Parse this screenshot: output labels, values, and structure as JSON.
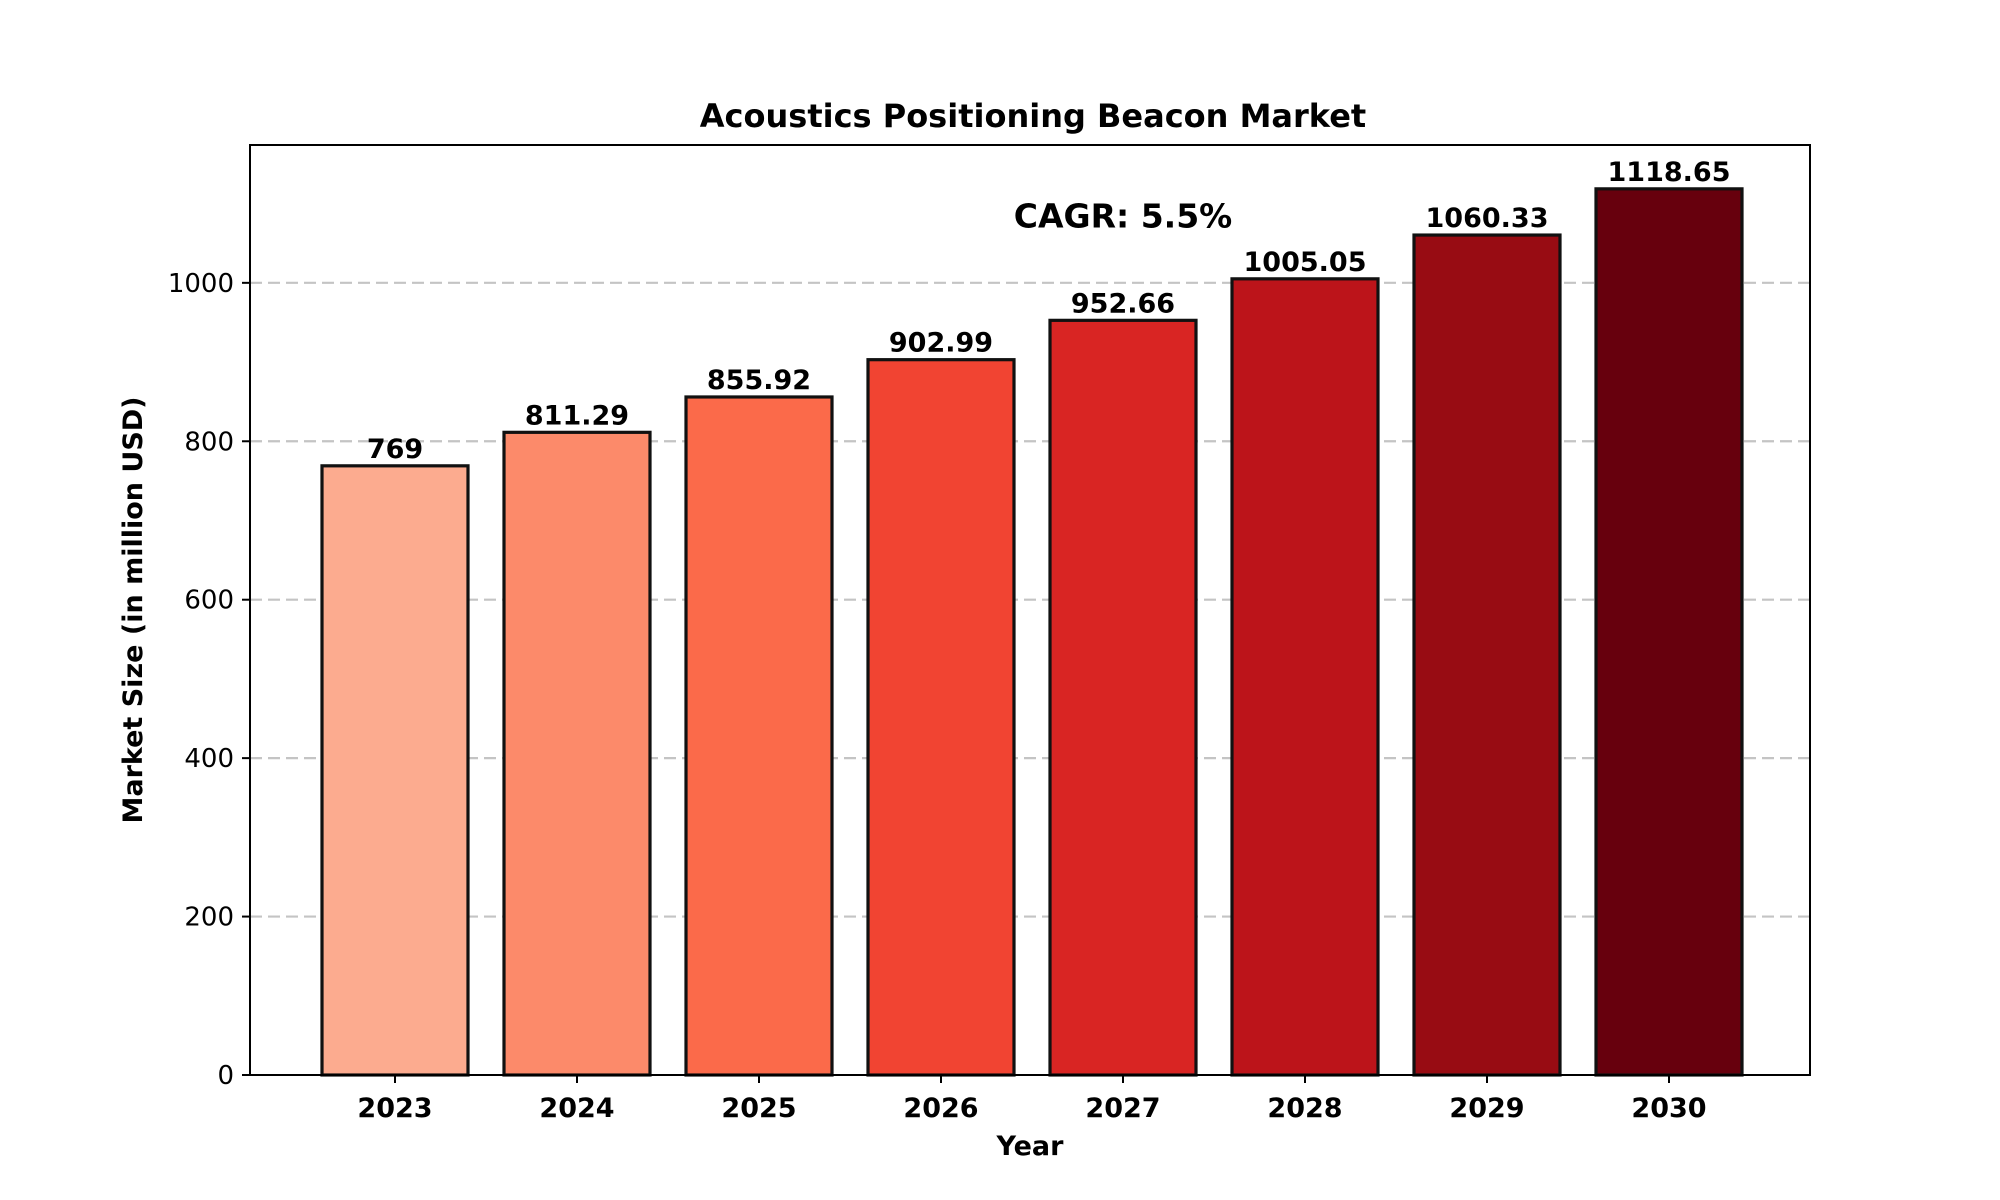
{
  "chart_data": {
    "type": "bar",
    "title": "Acoustics Positioning Beacon Market",
    "xlabel": "Year",
    "ylabel": "Market Size (in million USD)",
    "categories": [
      "2023",
      "2024",
      "2025",
      "2026",
      "2027",
      "2028",
      "2029",
      "2030"
    ],
    "values": [
      769,
      811.29,
      855.92,
      902.99,
      952.66,
      1005.05,
      1060.33,
      1118.65
    ],
    "value_labels": [
      "769",
      "811.29",
      "855.92",
      "902.99",
      "952.66",
      "1005.05",
      "1060.33",
      "1118.65"
    ],
    "colors": [
      "#fcab8f",
      "#fc8a6a",
      "#fb6a4a",
      "#f14432",
      "#d92523",
      "#bc141a",
      "#980c13",
      "#67000d"
    ],
    "ylim": [
      0,
      1174
    ],
    "yticks": [
      0,
      200,
      400,
      600,
      800,
      1000
    ],
    "grid": "y-dashed",
    "annotation": "CAGR: 5.5%",
    "annotation_position": {
      "x_category_index": 4,
      "y_value": 1070
    }
  }
}
